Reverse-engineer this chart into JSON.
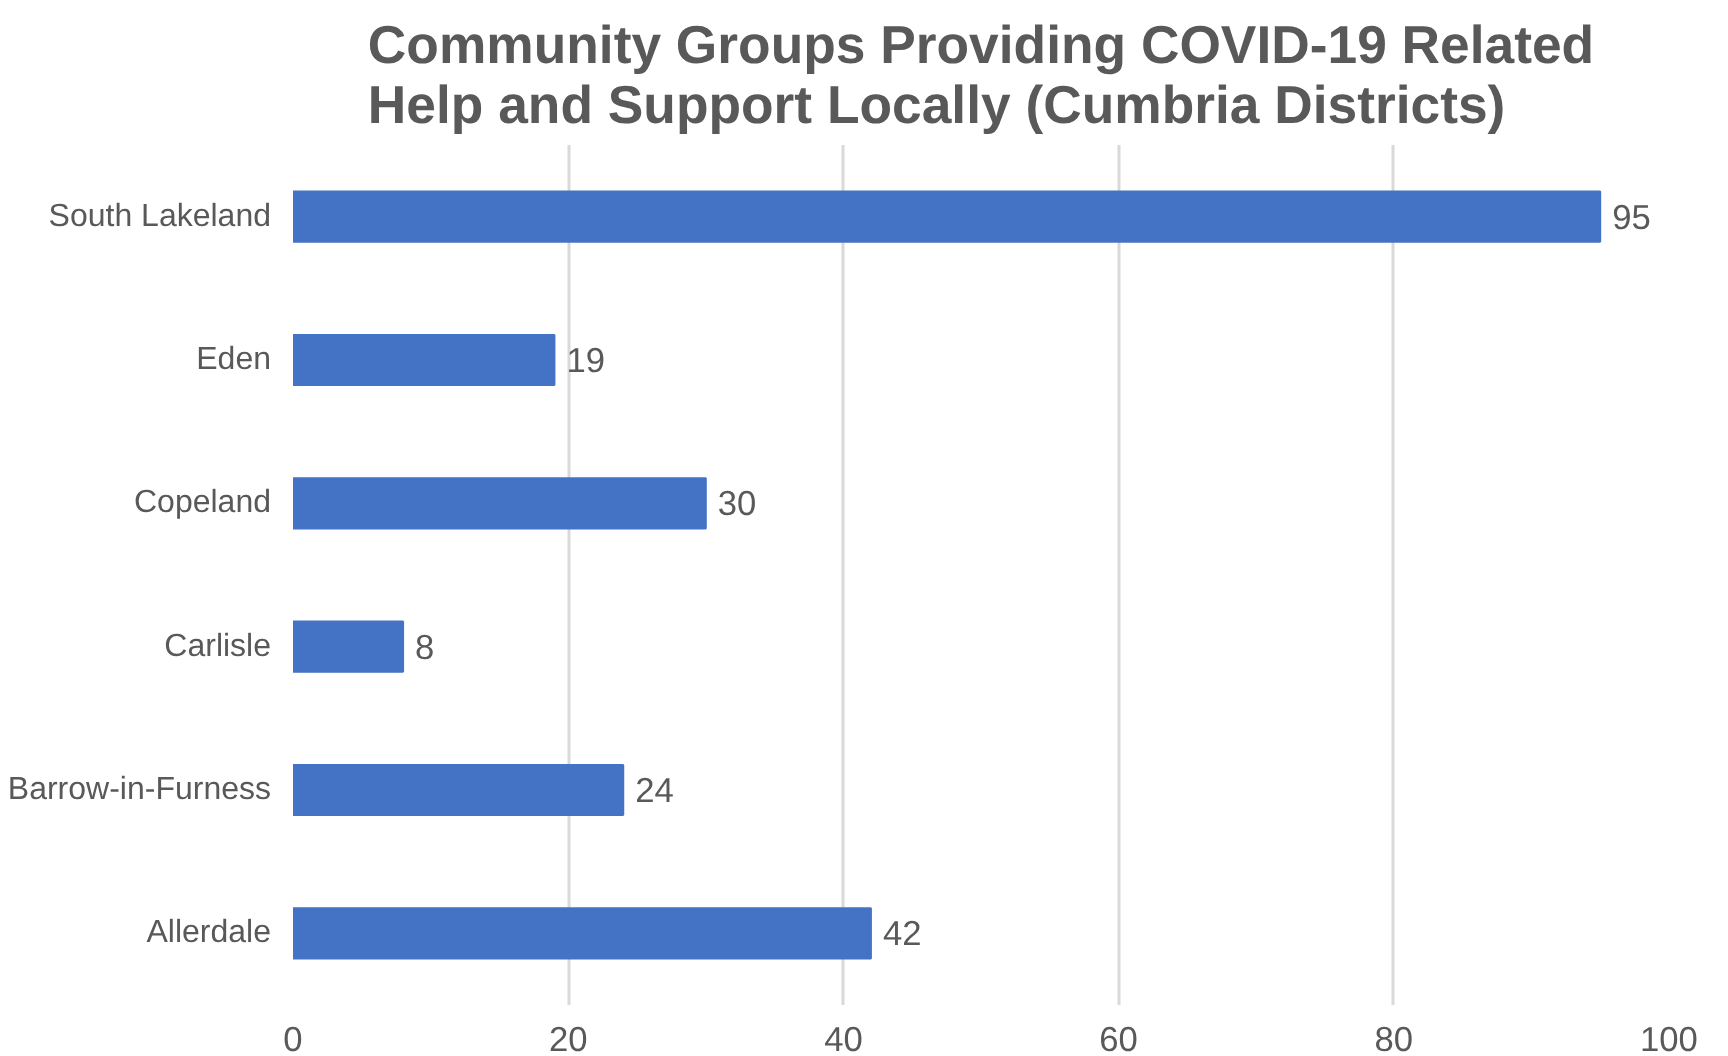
{
  "chart_data": {
    "type": "bar",
    "orientation": "horizontal",
    "title": "Community Groups Providing COVID-19 Related Help and Support Locally (Cumbria Districts)",
    "categories": [
      "South Lakeland",
      "Eden",
      "Copeland",
      "Carlisle",
      "Barrow-in-Furness",
      "Allerdale"
    ],
    "values": [
      95,
      19,
      30,
      8,
      24,
      42
    ],
    "color": "#4472c4",
    "xlim": [
      0,
      100
    ],
    "xticks": [
      0,
      20,
      40,
      60,
      80,
      100
    ],
    "grid": "x",
    "data_labels": true
  }
}
